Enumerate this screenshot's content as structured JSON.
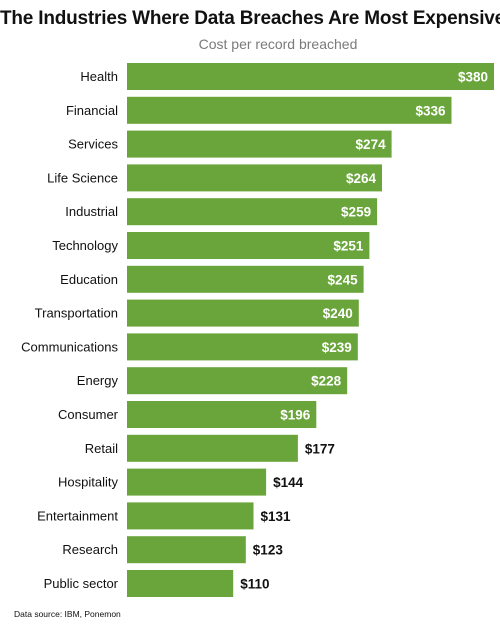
{
  "chart_data": {
    "type": "bar",
    "orientation": "horizontal",
    "title": "The Industries Where Data Breaches Are Most Expensive",
    "subtitle": "Cost per record breached",
    "categories": [
      "Health",
      "Financial",
      "Services",
      "Life Science",
      "Industrial",
      "Technology",
      "Education",
      "Transportation",
      "Communications",
      "Energy",
      "Consumer",
      "Retail",
      "Hospitality",
      "Entertainment",
      "Research",
      "Public sector"
    ],
    "values": [
      380,
      336,
      274,
      264,
      259,
      251,
      245,
      240,
      239,
      228,
      196,
      177,
      144,
      131,
      123,
      110
    ],
    "value_labels": [
      "$380",
      "$336",
      "$274",
      "$264",
      "$259",
      "$251",
      "$245",
      "$240",
      "$239",
      "$228",
      "$196",
      "$177",
      "$144",
      "$131",
      "$123",
      "$110"
    ],
    "xlabel": "",
    "ylabel": "",
    "xlim": [
      0,
      380
    ],
    "grid": false,
    "legend": "none",
    "bar_color": "#6aa53b",
    "inside_label_color": "#ffffff",
    "outside_label_color": "#111111",
    "source": "Data source: IBM, Ponemon"
  }
}
